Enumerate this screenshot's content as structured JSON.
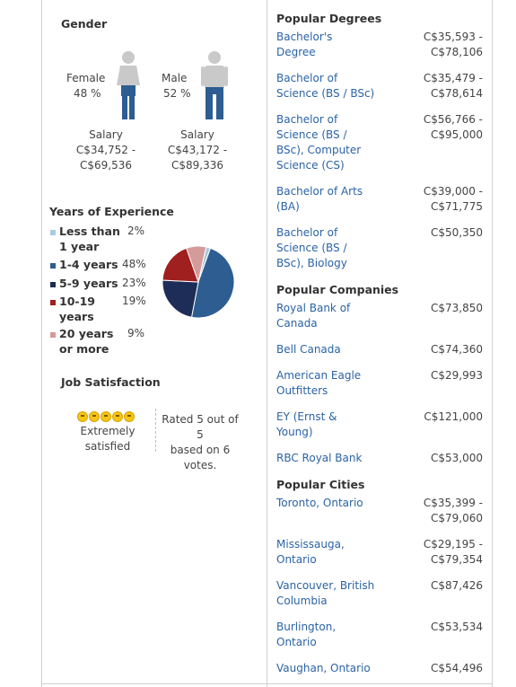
{
  "gender": {
    "title": "Gender",
    "female": {
      "label": "Female",
      "pct": "48 %",
      "salary_label": "Salary",
      "salary_range": "C$34,752 -",
      "salary_range2": "C$69,536"
    },
    "male": {
      "label": "Male",
      "pct": "52 %",
      "salary_label": "Salary",
      "salary_range": "C$43,172 -",
      "salary_range2": "C$89,336"
    }
  },
  "experience": {
    "title": "Years of Experience",
    "items": [
      {
        "label1": "Less than",
        "label2": "1 year",
        "pct": "2%",
        "color": "#a9cbe0"
      },
      {
        "label1": "1-4 years",
        "label2": "",
        "pct": "48%",
        "color": "#2d5d91"
      },
      {
        "label1": "5-9 years",
        "label2": "",
        "pct": "23%",
        "color": "#1e2d57"
      },
      {
        "label1": "10-19",
        "label2": "years",
        "pct": "19%",
        "color": "#a01f1f"
      },
      {
        "label1": "20 years",
        "label2": "or more",
        "pct": "9%",
        "color": "#d59a9a"
      }
    ]
  },
  "chart_data": {
    "type": "pie",
    "categories": [
      "Less than 1 year",
      "1-4 years",
      "5-9 years",
      "10-19 years",
      "20 years or more"
    ],
    "values": [
      2,
      48,
      23,
      19,
      9
    ],
    "colors": [
      "#a9cbe0",
      "#2d5d91",
      "#1e2d57",
      "#a01f1f",
      "#d59a9a"
    ]
  },
  "satisfaction": {
    "title": "Job Satisfaction",
    "icon": "smiley-face-icon",
    "label1": "Extremely",
    "label2": "satisfied",
    "rating1": "Rated 5 out of",
    "rating2": "5",
    "rating3": "based on 6",
    "rating4": "votes."
  },
  "degrees": {
    "title": "Popular Degrees",
    "items": [
      {
        "name": [
          "Bachelor's",
          "Degree"
        ],
        "salary": [
          "C$35,593 -",
          "C$78,106"
        ]
      },
      {
        "name": [
          "Bachelor of",
          "Science (BS / BSc)"
        ],
        "salary": [
          "C$35,479 -",
          "C$78,614"
        ]
      },
      {
        "name": [
          "Bachelor of",
          "Science (BS /",
          "BSc), Computer",
          "Science (CS)"
        ],
        "salary": [
          "C$56,766 -",
          "C$95,000"
        ]
      },
      {
        "name": [
          "Bachelor of Arts",
          "(BA)"
        ],
        "salary": [
          "C$39,000 -",
          "C$71,775"
        ]
      },
      {
        "name": [
          "Bachelor of",
          "Science (BS /",
          "BSc), Biology"
        ],
        "salary": [
          "C$50,350"
        ]
      }
    ]
  },
  "companies": {
    "title": "Popular Companies",
    "items": [
      {
        "name": [
          "Royal Bank of",
          "Canada"
        ],
        "salary": [
          "C$73,850"
        ]
      },
      {
        "name": [
          "Bell Canada"
        ],
        "salary": [
          "C$74,360"
        ]
      },
      {
        "name": [
          "American Eagle",
          "Outfitters"
        ],
        "salary": [
          "C$29,993"
        ]
      },
      {
        "name": [
          "EY (Ernst &",
          "Young)"
        ],
        "salary": [
          "C$121,000"
        ]
      },
      {
        "name": [
          "RBC Royal Bank"
        ],
        "salary": [
          "C$53,000"
        ]
      }
    ]
  },
  "cities": {
    "title": "Popular Cities",
    "items": [
      {
        "name": [
          "Toronto, Ontario"
        ],
        "salary": [
          "C$35,399 -",
          "C$79,060"
        ]
      },
      {
        "name": [
          "Mississauga,",
          "Ontario"
        ],
        "salary": [
          "C$29,195 -",
          "C$79,354"
        ]
      },
      {
        "name": [
          "Vancouver, British",
          "Columbia"
        ],
        "salary": [
          "C$87,426"
        ]
      },
      {
        "name": [
          "Burlington,",
          "Ontario"
        ],
        "salary": [
          "C$53,534"
        ]
      },
      {
        "name": [
          "Vaughan, Ontario"
        ],
        "salary": [
          "C$54,496"
        ]
      }
    ]
  }
}
